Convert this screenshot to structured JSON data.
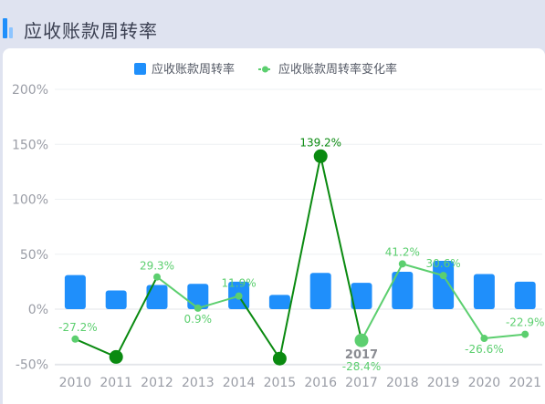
{
  "page": {
    "title": "应收账款周转率"
  },
  "chart_data": {
    "type": "bar",
    "categories": [
      "2010",
      "2011",
      "2012",
      "2013",
      "2014",
      "2015",
      "2016",
      "2017",
      "2018",
      "2019",
      "2020",
      "2021"
    ],
    "series": [
      {
        "name": "应收账款周转率",
        "kind": "bar",
        "color": "#1f8ffb",
        "values": [
          31,
          17,
          22,
          23,
          25,
          13,
          33,
          24,
          34,
          44,
          32,
          25
        ]
      },
      {
        "name": "应收账款周转率变化率",
        "kind": "line",
        "color": "#5ccf6f",
        "values": [
          -27.2,
          -43.5,
          29.3,
          0.9,
          11.9,
          -45.0,
          139.2,
          -28.4,
          41.2,
          30.6,
          -26.6,
          -22.9
        ],
        "labels": [
          "-27.2%",
          "",
          "29.3%",
          "0.9%",
          "11.9%",
          "",
          "139.2%",
          "-28.4%",
          "41.2%",
          "30.6%",
          "-26.6%",
          "-22.9%"
        ]
      }
    ],
    "highlight_color": "#0a8a10",
    "yaxis": {
      "ticks": [
        "200%",
        "150%",
        "100%",
        "50%",
        "0%",
        "-50%"
      ],
      "tick_values": [
        200,
        150,
        100,
        50,
        0,
        -50
      ],
      "ylim": [
        -50,
        200
      ]
    },
    "tooltip": {
      "category": "2017"
    },
    "legend": "top-center"
  }
}
